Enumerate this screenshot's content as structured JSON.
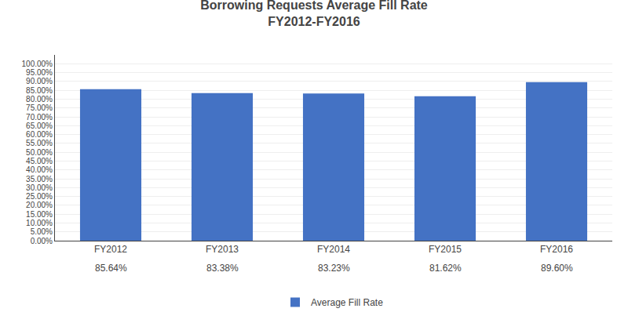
{
  "chart_data": {
    "type": "bar",
    "title": "Borrowing Requests Average Fill Rate",
    "subtitle": "FY2012-FY2016",
    "categories": [
      "FY2012",
      "FY2013",
      "FY2014",
      "FY2015",
      "FY2016"
    ],
    "series": [
      {
        "name": "Average Fill Rate",
        "color": "#4472C4",
        "values": [
          0.8564,
          0.8338,
          0.8323,
          0.8162,
          0.896
        ],
        "value_labels": [
          "85.64%",
          "83.38%",
          "83.23%",
          "81.62%",
          "89.60%"
        ]
      }
    ],
    "ylim": [
      0.0,
      1.05
    ],
    "yticks": [
      {
        "value": 0.0,
        "label": "0.00%"
      },
      {
        "value": 0.05,
        "label": "5.00%"
      },
      {
        "value": 0.1,
        "label": "10.00%"
      },
      {
        "value": 0.15,
        "label": "15.00%"
      },
      {
        "value": 0.2,
        "label": "20.00%"
      },
      {
        "value": 0.25,
        "label": "25.00%"
      },
      {
        "value": 0.3,
        "label": "30.00%"
      },
      {
        "value": 0.35,
        "label": "35.00%"
      },
      {
        "value": 0.4,
        "label": "40.00%"
      },
      {
        "value": 0.45,
        "label": "45.00%"
      },
      {
        "value": 0.5,
        "label": "50.00%"
      },
      {
        "value": 0.55,
        "label": "55.00%"
      },
      {
        "value": 0.6,
        "label": "60.00%"
      },
      {
        "value": 0.65,
        "label": "65.00%"
      },
      {
        "value": 0.7,
        "label": "70.00%"
      },
      {
        "value": 0.75,
        "label": "75.00%"
      },
      {
        "value": 0.8,
        "label": "80.00%"
      },
      {
        "value": 0.85,
        "label": "85.00%"
      },
      {
        "value": 0.9,
        "label": "90.00%"
      },
      {
        "value": 0.95,
        "label": "95.00%"
      },
      {
        "value": 1.0,
        "label": "100.00%"
      }
    ],
    "grid": true,
    "legend": "bottom",
    "data_labels": true
  }
}
